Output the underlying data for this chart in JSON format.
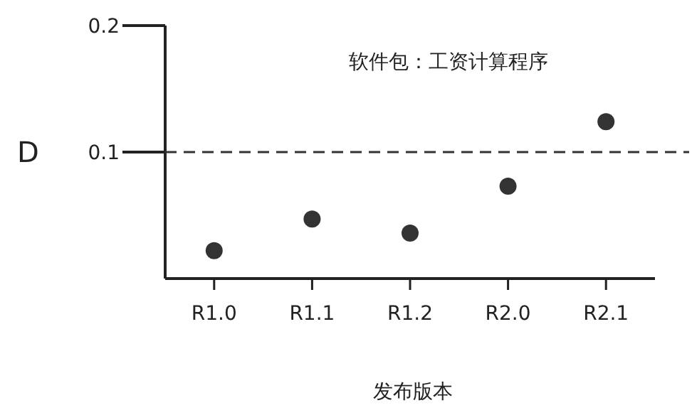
{
  "chart_data": {
    "type": "scatter",
    "title": "软件包：工资计算程序",
    "xlabel": "发布版本",
    "categories": [
      "R1.0",
      "R1.1",
      "R1.2",
      "R2.0",
      "R2.1"
    ],
    "series": [
      {
        "color": "#333333",
        "values": [
          0.022,
          0.047,
          0.036,
          0.073,
          0.124
        ]
      }
    ],
    "ylim": [
      0,
      0.2
    ],
    "yticks": [
      0.2,
      0.1
    ],
    "ref_lines": [
      {
        "axis": "y",
        "value": 0.1,
        "label": "D",
        "line_style": "dashed",
        "color": "#333333"
      }
    ],
    "marker": "circle",
    "grid": false
  }
}
